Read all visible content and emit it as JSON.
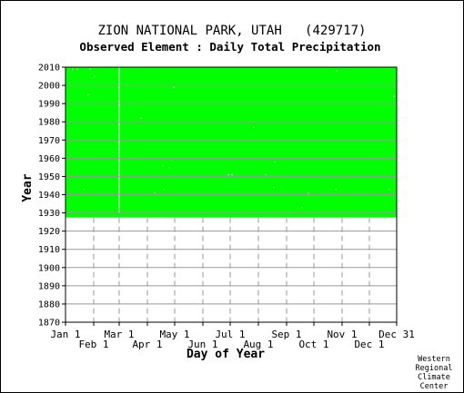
{
  "chart_data": {
    "type": "heatmap",
    "title": "ZION NATIONAL PARK, UTAH   (429717)",
    "subtitle": "Observed Element : Daily Total Precipitation",
    "xlabel": "Day of Year",
    "ylabel": "Year",
    "xlim": [
      1,
      365
    ],
    "ylim": [
      1870,
      2010
    ],
    "x_ticks": [
      {
        "label": "Jan 1",
        "day": 1,
        "row": 1
      },
      {
        "label": "Feb 1",
        "day": 32,
        "row": 2
      },
      {
        "label": "Mar 1",
        "day": 60,
        "row": 1
      },
      {
        "label": "Apr 1",
        "day": 91,
        "row": 2
      },
      {
        "label": "May 1",
        "day": 121,
        "row": 1
      },
      {
        "label": "Jun 1",
        "day": 152,
        "row": 2
      },
      {
        "label": "Jul 1",
        "day": 182,
        "row": 1
      },
      {
        "label": "Aug 1",
        "day": 213,
        "row": 2
      },
      {
        "label": "Sep 1",
        "day": 244,
        "row": 1
      },
      {
        "label": "Oct 1",
        "day": 274,
        "row": 2
      },
      {
        "label": "Nov 1",
        "day": 305,
        "row": 1
      },
      {
        "label": "Dec 1",
        "day": 335,
        "row": 2
      },
      {
        "label": "Dec 31",
        "day": 365,
        "row": 1
      }
    ],
    "y_ticks": [
      1870,
      1880,
      1890,
      1900,
      1910,
      1920,
      1930,
      1940,
      1950,
      1960,
      1970,
      1980,
      1990,
      2000,
      2010
    ],
    "grid": true,
    "data_coverage": {
      "year_start": 1927.5,
      "year_end": 2010,
      "day_start": 1,
      "day_end": 365,
      "color": "#00ff00"
    },
    "missing_days": [
      {
        "year": 2009,
        "day": 9
      },
      {
        "year": 2009,
        "day": 14
      },
      {
        "year": 2009,
        "day": 28
      },
      {
        "year": 2008,
        "day": 299
      },
      {
        "year": 2005,
        "day": 33
      },
      {
        "year": 2000,
        "day": 68
      },
      {
        "year": 1999,
        "day": 120
      },
      {
        "year": 1995,
        "day": 26
      },
      {
        "year": 1994,
        "day": 362
      },
      {
        "year": 1982,
        "day": 84
      },
      {
        "year": 1977,
        "day": 208
      },
      {
        "year": 1958,
        "day": 231
      },
      {
        "year": 1956,
        "day": 108
      },
      {
        "year": 1955,
        "day": 115
      },
      {
        "year": 1951,
        "day": 180
      },
      {
        "year": 1951,
        "day": 184
      },
      {
        "year": 1951,
        "day": 221
      },
      {
        "year": 1944,
        "day": 230
      },
      {
        "year": 1943,
        "day": 21
      },
      {
        "year": 1943,
        "day": 109
      },
      {
        "year": 1943,
        "day": 298
      },
      {
        "year": 1943,
        "day": 357
      },
      {
        "year": 1941,
        "day": 99
      },
      {
        "year": 1941,
        "day": 268
      },
      {
        "year": 1940,
        "day": 267
      },
      {
        "year": 1940,
        "day": 269
      },
      {
        "year": 1933,
        "day": 261
      }
    ],
    "missing_runs": [
      {
        "day": 60,
        "year_start": 1930,
        "year_end": 2010
      }
    ],
    "missing_color": "#ffffff"
  },
  "footer": {
    "credit_lines": [
      "Western",
      "Regional",
      "Climate",
      "Center"
    ]
  }
}
